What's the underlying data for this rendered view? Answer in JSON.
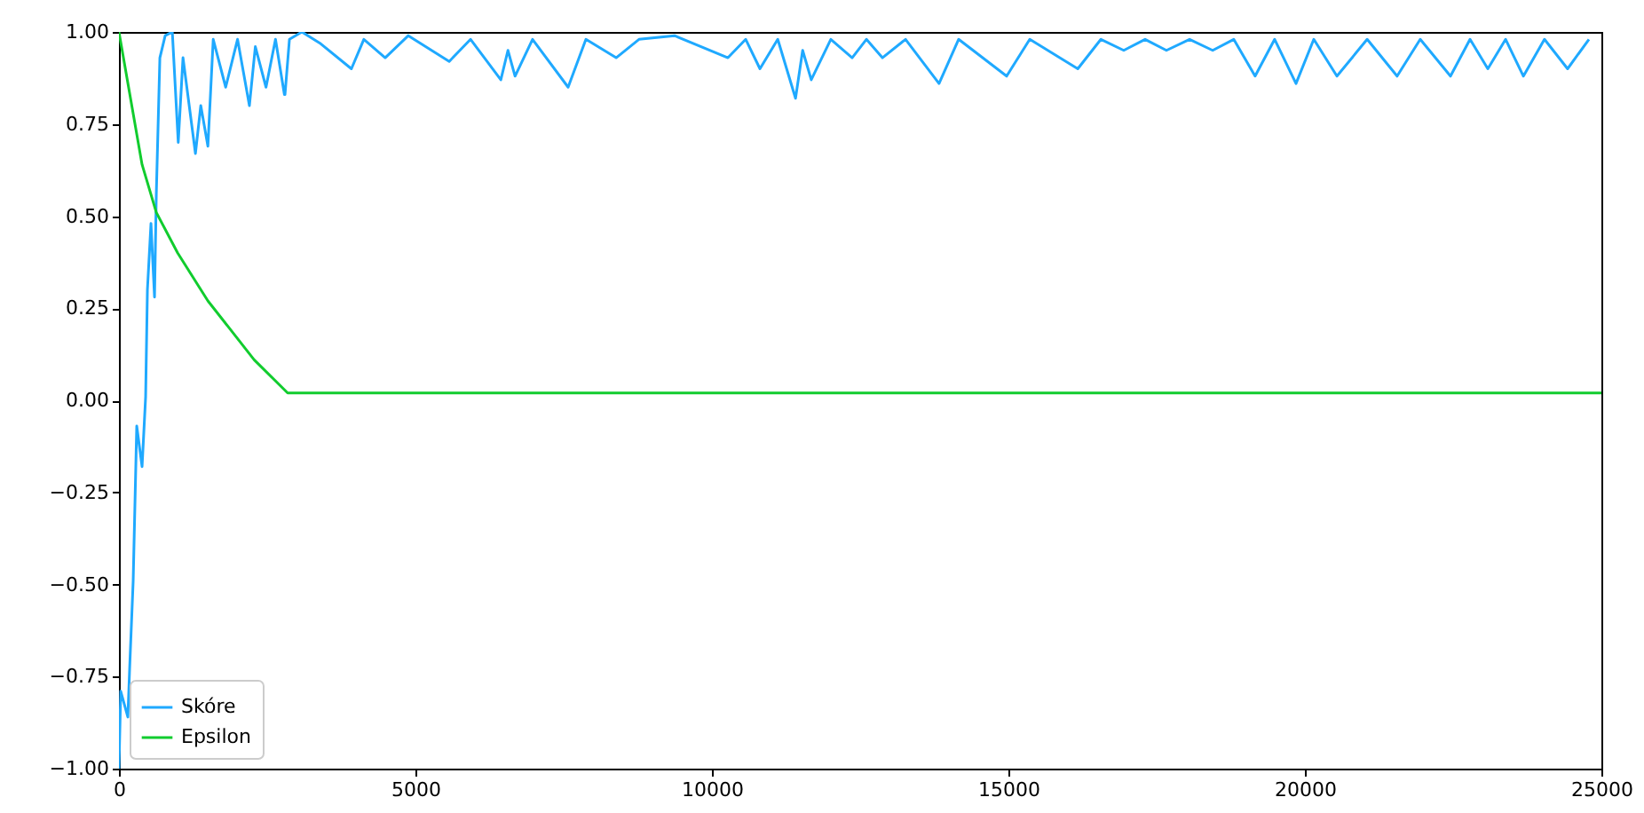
{
  "chart_data": {
    "type": "line",
    "xlim": [
      0,
      25000
    ],
    "ylim": [
      -1,
      1
    ],
    "xticks": [
      0,
      5000,
      10000,
      15000,
      20000,
      25000
    ],
    "yticks": [
      {
        "value": -1,
        "label": "−1.00"
      },
      {
        "value": -0.75,
        "label": "−0.75"
      },
      {
        "value": -0.5,
        "label": "−0.50"
      },
      {
        "value": -0.25,
        "label": "−0.25"
      },
      {
        "value": 0,
        "label": "0.00"
      },
      {
        "value": 0.25,
        "label": "0.25"
      },
      {
        "value": 0.5,
        "label": "0.50"
      },
      {
        "value": 0.75,
        "label": "0.75"
      },
      {
        "value": 1,
        "label": "1.00"
      }
    ],
    "grid": false,
    "legend": "bottom left",
    "series": [
      {
        "name": "Skóre",
        "color": "#1fa9ff",
        "x": [
          0,
          30,
          150,
          180,
          240,
          300,
          390,
          450,
          480,
          540,
          600,
          630,
          690,
          780,
          900,
          1000,
          1080,
          1290,
          1380,
          1500,
          1590,
          1800,
          2000,
          2200,
          2300,
          2480,
          2640,
          2790,
          2800,
          2875,
          3085,
          3385,
          3920,
          4130,
          4490,
          4880,
          5570,
          5930,
          6440,
          6560,
          6680,
          6975,
          7575,
          7875,
          8385,
          8770,
          9370,
          10270,
          10570,
          10810,
          11110,
          11410,
          11530,
          11675,
          12005,
          12365,
          12605,
          12875,
          13265,
          13830,
          14160,
          14970,
          15360,
          16170,
          16560,
          16945,
          17305,
          17665,
          18055,
          18445,
          18800,
          19160,
          19490,
          19850,
          20150,
          20540,
          21050,
          21555,
          21945,
          22455,
          22785,
          23085,
          23385,
          23685,
          24040,
          24430,
          24790
        ],
        "values": [
          -1,
          -0.79,
          -0.86,
          -0.73,
          -0.49,
          -0.07,
          -0.18,
          0.01,
          0.3,
          0.48,
          0.28,
          0.56,
          0.93,
          0.99,
          1,
          0.7,
          0.93,
          0.67,
          0.8,
          0.69,
          0.98,
          0.85,
          0.98,
          0.8,
          0.96,
          0.85,
          0.98,
          0.83,
          0.83,
          0.98,
          1,
          0.97,
          0.9,
          0.98,
          0.93,
          0.99,
          0.92,
          0.98,
          0.87,
          0.95,
          0.88,
          0.98,
          0.85,
          0.98,
          0.93,
          0.98,
          0.99,
          0.93,
          0.98,
          0.9,
          0.98,
          0.82,
          0.95,
          0.87,
          0.98,
          0.93,
          0.98,
          0.93,
          0.98,
          0.86,
          0.98,
          0.88,
          0.98,
          0.9,
          0.98,
          0.95,
          0.98,
          0.95,
          0.98,
          0.95,
          0.98,
          0.88,
          0.98,
          0.86,
          0.98,
          0.88,
          0.98,
          0.88,
          0.98,
          0.88,
          0.98,
          0.9,
          0.98,
          0.88,
          0.98,
          0.9,
          0.98
        ]
      },
      {
        "name": "Epsilon",
        "color": "#11cc2e",
        "x": [
          0,
          390,
          630,
          990,
          1500,
          1890,
          2280,
          2845,
          25000
        ],
        "values": [
          1,
          0.64,
          0.51,
          0.4,
          0.27,
          0.19,
          0.11,
          0.02,
          0.02
        ]
      }
    ]
  }
}
